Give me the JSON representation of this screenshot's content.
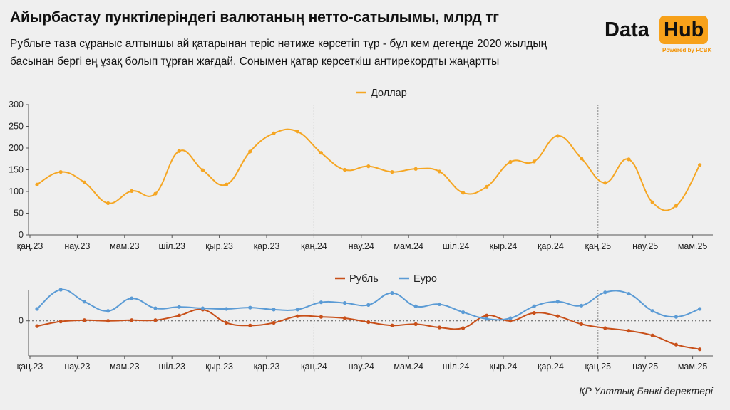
{
  "header": {
    "title": "Айырбастау пунктілеріндегі валютаның нетто-сатылымы, млрд тг",
    "subtitle": "Рубльге таза сұраныс алтыншы ай қатарынан теріс нәтиже көрсетіп тұр - бұл кем дегенде 2020 жылдың басынан бергі ең ұзақ болып тұрған жағдай. Сонымен қатар көрсеткіш антирекордты жаңартты"
  },
  "logo": {
    "word1": "Data",
    "word2": "Hub",
    "powered": "Powered by FCBK",
    "accent": "#f7a11a"
  },
  "source": "ҚР Ұлттық Банкі деректері",
  "chart_data": [
    {
      "type": "line",
      "x_tick_labels": [
        "қаң.23",
        "нау.23",
        "мам.23",
        "шіл.23",
        "қыр.23",
        "қар.23",
        "қаң.24",
        "нау.24",
        "мам.24",
        "шіл.24",
        "қыр.24",
        "қар.24",
        "қаң.25",
        "нау.25",
        "мам.25"
      ],
      "y_ticks": [
        0,
        50,
        100,
        150,
        200,
        250,
        300
      ],
      "ylim": [
        0,
        300
      ],
      "year_dividers_at": [
        "қаң.24",
        "қаң.25"
      ],
      "series": [
        {
          "name": "Доллар",
          "color": "#f5a623",
          "x": [
            "қаң.23",
            "ақп.23",
            "нау.23",
            "сәу.23",
            "мам.23",
            "мау.23",
            "шіл.23",
            "там.23",
            "қыр.23",
            "қаз.23",
            "қар.23",
            "жел.23",
            "қаң.24",
            "ақп.24",
            "нау.24",
            "сәу.24",
            "мам.24",
            "мау.24",
            "шіл.24",
            "там.24",
            "қыр.24",
            "қаз.24",
            "қар.24",
            "жел.24",
            "қаң.25",
            "ақп.25",
            "нау.25",
            "сәу.25",
            "мам.25"
          ],
          "values": [
            116,
            145,
            121,
            73,
            101,
            95,
            193,
            149,
            116,
            192,
            234,
            238,
            189,
            150,
            158,
            145,
            152,
            146,
            97,
            111,
            168,
            169,
            228,
            176,
            120,
            174,
            75,
            67,
            161
          ]
        }
      ]
    },
    {
      "type": "line",
      "x_tick_labels": [
        "қаң.23",
        "нау.23",
        "мам.23",
        "шіл.23",
        "қыр.23",
        "қар.23",
        "қаң.24",
        "нау.24",
        "мам.24",
        "шіл.24",
        "қыр.24",
        "қар.24",
        "қаң.25",
        "нау.25",
        "мам.25"
      ],
      "y_ticks": [
        0
      ],
      "ylim": [
        -53,
        47
      ],
      "year_dividers_at": [
        "қаң.24",
        "қаң.25"
      ],
      "series": [
        {
          "name": "Рубль",
          "color": "#c8501a",
          "values": [
            -8,
            -1,
            1,
            0,
            1,
            1,
            8,
            17,
            -3,
            -7,
            -3,
            7,
            6,
            4,
            -2,
            -7,
            -5,
            -10,
            -11,
            8,
            0,
            12,
            7,
            -5,
            -11,
            -15,
            -22,
            -36,
            -43
          ]
        },
        {
          "name": "Еуро",
          "color": "#5b9bd5",
          "values": [
            18,
            47,
            29,
            15,
            34,
            19,
            21,
            19,
            18,
            20,
            17,
            17,
            28,
            27,
            24,
            42,
            22,
            25,
            13,
            3,
            4,
            22,
            29,
            23,
            43,
            41,
            15,
            6,
            18
          ]
        }
      ]
    }
  ]
}
